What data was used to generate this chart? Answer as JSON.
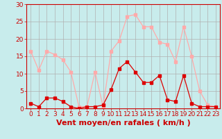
{
  "xlabel": "Vent moyen/en rafales ( km/h )",
  "hours": [
    0,
    1,
    2,
    3,
    4,
    5,
    6,
    7,
    8,
    9,
    10,
    11,
    12,
    13,
    14,
    15,
    16,
    17,
    18,
    19,
    20,
    21,
    22,
    23
  ],
  "vent_moyen": [
    1.5,
    0.5,
    3.0,
    3.0,
    2.0,
    0.5,
    0.0,
    0.5,
    0.5,
    1.0,
    5.5,
    11.5,
    13.5,
    10.5,
    7.5,
    7.5,
    9.5,
    2.5,
    2.0,
    9.5,
    1.5,
    0.5,
    0.5,
    0.5
  ],
  "rafales": [
    16.5,
    11.0,
    16.5,
    15.5,
    14.0,
    10.5,
    0.5,
    0.5,
    10.5,
    0.5,
    16.5,
    19.5,
    26.5,
    27.0,
    23.5,
    23.5,
    19.0,
    18.5,
    13.5,
    23.5,
    15.0,
    5.0,
    1.0,
    0.5
  ],
  "line_color_moyen": "#dd0000",
  "line_color_rafales": "#ffaaaa",
  "bg_color": "#c8ecec",
  "grid_color": "#b0b0b0",
  "tick_label_color": "#cc0000",
  "xlabel_color": "#cc0000",
  "ylim": [
    0,
    30
  ],
  "yticks": [
    0,
    5,
    10,
    15,
    20,
    25,
    30
  ],
  "xlabel_fontsize": 8,
  "tick_fontsize": 6.5
}
